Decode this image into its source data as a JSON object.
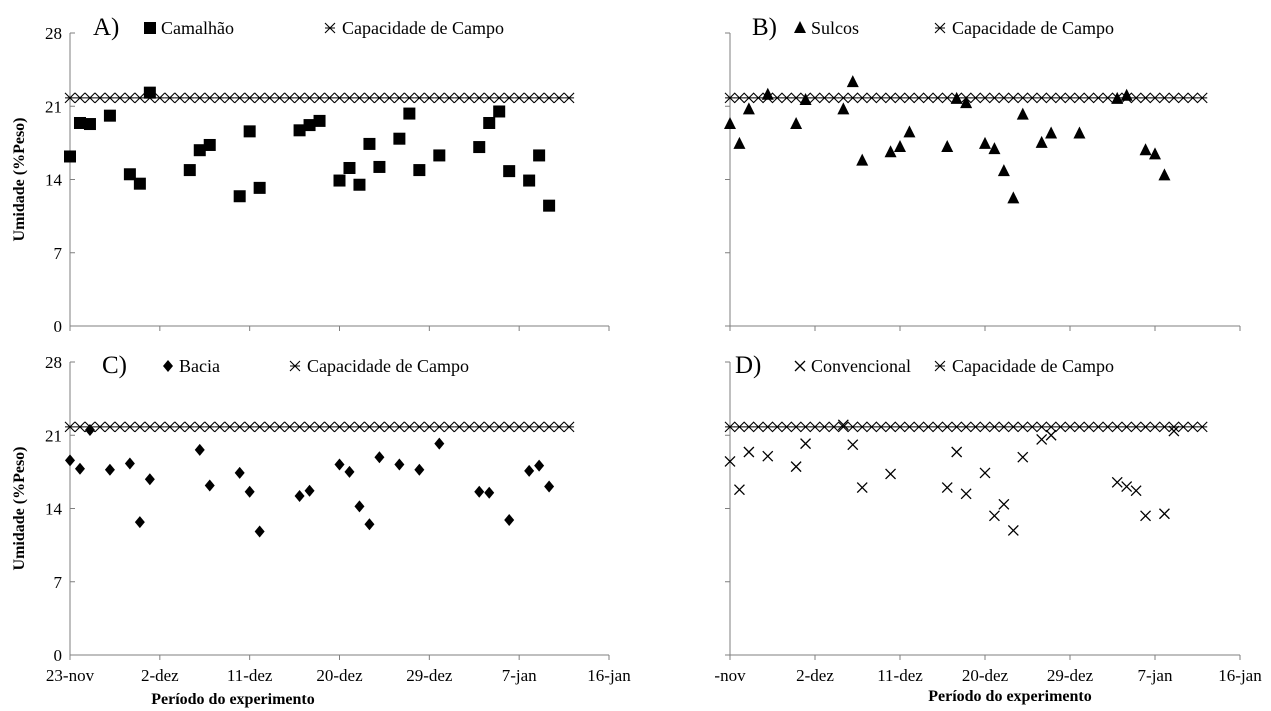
{
  "chart_data": [
    {
      "panel": "A)",
      "type": "scatter",
      "xlabel": "Período do experimento",
      "ylabel": "Umidade (%Peso)",
      "ylim": [
        0,
        28
      ],
      "yticks": [
        "0",
        "7",
        "14",
        "21",
        "28"
      ],
      "xlim_days": [
        0,
        54
      ],
      "xticks": [
        "23-nov",
        "2-dez",
        "11-dez",
        "20-dez",
        "29-dez",
        "7-jan",
        "16-jan"
      ],
      "legend_placement": "top",
      "series": [
        {
          "name": "Camalhão",
          "marker": "square",
          "points": [
            [
              0,
              16.2
            ],
            [
              1,
              19.4
            ],
            [
              2,
              19.3
            ],
            [
              4,
              20.1
            ],
            [
              6,
              14.5
            ],
            [
              7,
              13.6
            ],
            [
              8,
              22.3
            ],
            [
              12,
              14.9
            ],
            [
              13,
              16.8
            ],
            [
              14,
              17.3
            ],
            [
              17,
              12.4
            ],
            [
              18,
              18.6
            ],
            [
              19,
              13.2
            ],
            [
              23,
              18.7
            ],
            [
              24,
              19.2
            ],
            [
              25,
              19.6
            ],
            [
              27,
              13.9
            ],
            [
              28,
              15.1
            ],
            [
              29,
              13.5
            ],
            [
              30,
              17.4
            ],
            [
              31,
              15.2
            ],
            [
              33,
              17.9
            ],
            [
              34,
              20.3
            ],
            [
              35,
              14.9
            ],
            [
              37,
              16.3
            ],
            [
              41,
              17.1
            ],
            [
              42,
              19.4
            ],
            [
              43,
              20.5
            ],
            [
              44,
              14.8
            ],
            [
              46,
              13.9
            ],
            [
              47,
              16.3
            ],
            [
              48,
              11.5
            ]
          ]
        },
        {
          "name": "Capacidade de Campo",
          "marker": "asterisk",
          "constant": 21.8,
          "x_from": 0,
          "x_to": 50
        }
      ]
    },
    {
      "panel": "B)",
      "type": "scatter",
      "xlabel": "Período do experimento",
      "ylabel": "",
      "ylim": [
        0,
        28
      ],
      "yticks": [],
      "xlim_days": [
        0,
        54
      ],
      "xticks": [
        "-nov",
        "2-dez",
        "11-dez",
        "20-dez",
        "29-dez",
        "7-jan",
        "16-jan"
      ],
      "legend_placement": "top",
      "series": [
        {
          "name": "Sulcos",
          "marker": "triangle",
          "points": [
            [
              0,
              19.3
            ],
            [
              1,
              17.4
            ],
            [
              2,
              20.7
            ],
            [
              4,
              22.1
            ],
            [
              7,
              19.3
            ],
            [
              8,
              21.6
            ],
            [
              12,
              20.7
            ],
            [
              13,
              23.3
            ],
            [
              14,
              15.8
            ],
            [
              17,
              16.6
            ],
            [
              18,
              17.1
            ],
            [
              19,
              18.5
            ],
            [
              23,
              17.1
            ],
            [
              24,
              21.7
            ],
            [
              25,
              21.3
            ],
            [
              27,
              17.4
            ],
            [
              28,
              16.9
            ],
            [
              29,
              14.8
            ],
            [
              30,
              12.2
            ],
            [
              31,
              20.2
            ],
            [
              33,
              17.5
            ],
            [
              34,
              18.4
            ],
            [
              37,
              18.4
            ],
            [
              41,
              21.7
            ],
            [
              42,
              22.0
            ],
            [
              44,
              16.8
            ],
            [
              45,
              16.4
            ],
            [
              46,
              14.4
            ]
          ]
        },
        {
          "name": "Capacidade de Campo",
          "marker": "asterisk",
          "constant": 21.8,
          "x_from": 0,
          "x_to": 50
        }
      ]
    },
    {
      "panel": "C)",
      "type": "scatter",
      "xlabel": "Período do experimento",
      "ylabel": "Umidade (%Peso)",
      "ylim": [
        0,
        28
      ],
      "yticks": [
        "0",
        "7",
        "14",
        "21",
        "28"
      ],
      "xlim_days": [
        0,
        54
      ],
      "xticks": [
        "23-nov",
        "2-dez",
        "11-dez",
        "20-dez",
        "29-dez",
        "7-jan",
        "16-jan"
      ],
      "legend_placement": "top",
      "series": [
        {
          "name": "Bacia",
          "marker": "diamond",
          "points": [
            [
              0,
              18.6
            ],
            [
              1,
              17.8
            ],
            [
              2,
              21.5
            ],
            [
              4,
              17.7
            ],
            [
              6,
              18.3
            ],
            [
              7,
              12.7
            ],
            [
              8,
              16.8
            ],
            [
              13,
              19.6
            ],
            [
              14,
              16.2
            ],
            [
              17,
              17.4
            ],
            [
              18,
              15.6
            ],
            [
              19,
              11.8
            ],
            [
              23,
              15.2
            ],
            [
              24,
              15.7
            ],
            [
              27,
              18.2
            ],
            [
              28,
              17.5
            ],
            [
              29,
              14.2
            ],
            [
              30,
              12.5
            ],
            [
              31,
              18.9
            ],
            [
              33,
              18.2
            ],
            [
              35,
              17.7
            ],
            [
              37,
              20.2
            ],
            [
              41,
              15.6
            ],
            [
              42,
              15.5
            ],
            [
              44,
              12.9
            ],
            [
              46,
              17.6
            ],
            [
              47,
              18.1
            ],
            [
              48,
              16.1
            ]
          ]
        },
        {
          "name": "Capacidade de Campo",
          "marker": "asterisk",
          "constant": 21.8,
          "x_from": 0,
          "x_to": 50
        }
      ]
    },
    {
      "panel": "D)",
      "type": "scatter",
      "xlabel": "Período do experimento",
      "ylabel": "",
      "ylim": [
        0,
        28
      ],
      "yticks": [],
      "xlim_days": [
        0,
        54
      ],
      "xticks": [
        "-nov",
        "2-dez",
        "11-dez",
        "20-dez",
        "29-dez",
        "7-jan",
        "16-jan"
      ],
      "legend_placement": "top",
      "series": [
        {
          "name": "Convencional",
          "marker": "x",
          "points": [
            [
              0,
              18.5
            ],
            [
              1,
              15.8
            ],
            [
              2,
              19.4
            ],
            [
              4,
              19.0
            ],
            [
              7,
              18.0
            ],
            [
              8,
              20.2
            ],
            [
              12,
              22.0
            ],
            [
              13,
              20.1
            ],
            [
              14,
              16.0
            ],
            [
              17,
              17.3
            ],
            [
              23,
              16.0
            ],
            [
              24,
              19.4
            ],
            [
              25,
              15.4
            ],
            [
              27,
              17.4
            ],
            [
              28,
              13.3
            ],
            [
              29,
              14.4
            ],
            [
              30,
              11.9
            ],
            [
              31,
              18.9
            ],
            [
              33,
              20.6
            ],
            [
              34,
              21.0
            ],
            [
              41,
              16.5
            ],
            [
              42,
              16.1
            ],
            [
              43,
              15.7
            ],
            [
              44,
              13.3
            ],
            [
              46,
              13.5
            ],
            [
              47,
              21.4
            ]
          ]
        },
        {
          "name": "Capacidade de Campo",
          "marker": "asterisk",
          "constant": 21.8,
          "x_from": 0,
          "x_to": 50
        }
      ]
    }
  ]
}
